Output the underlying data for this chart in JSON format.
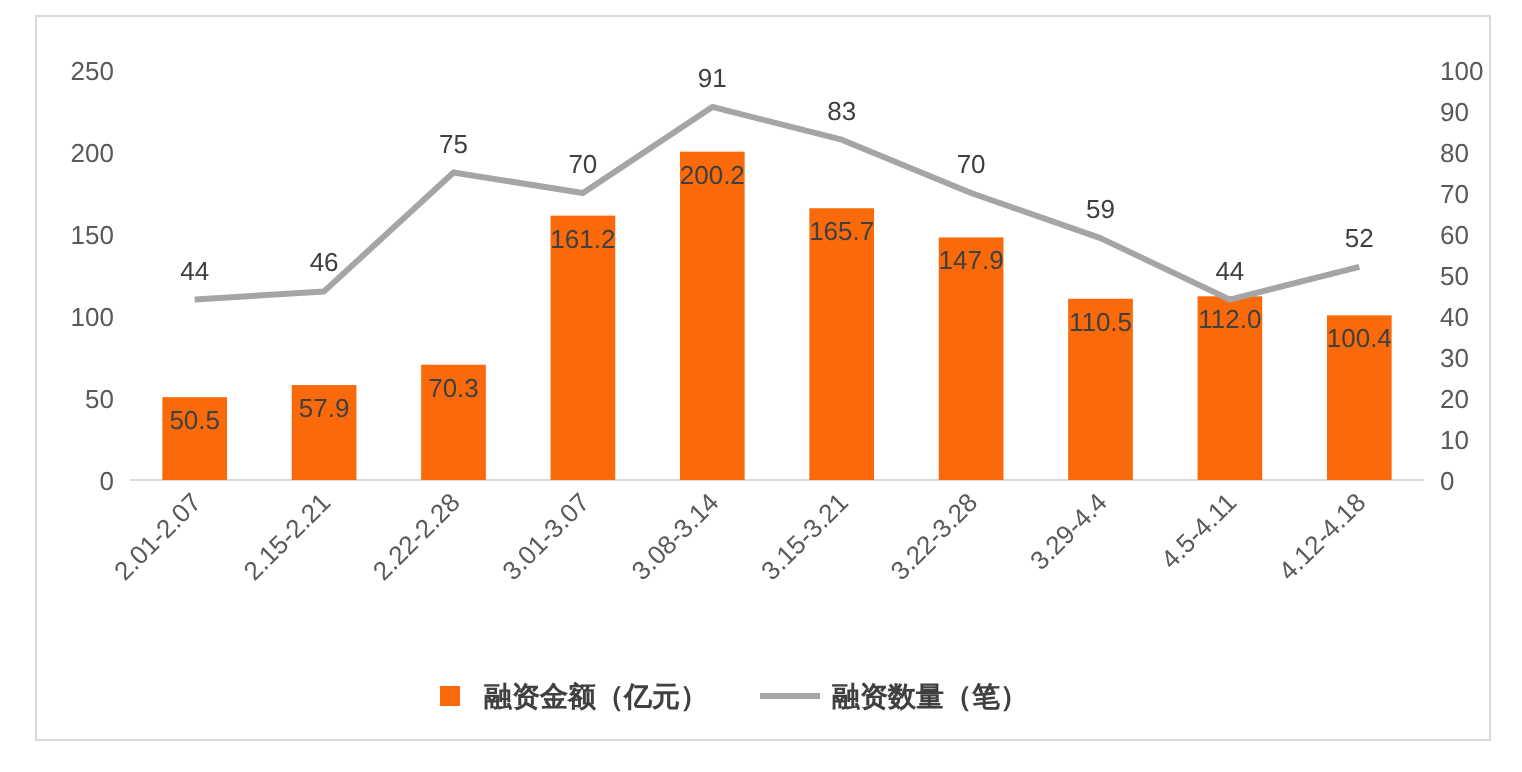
{
  "chart_data": {
    "type": "bar",
    "categories": [
      "2.01-2.07",
      "2.15-2.21",
      "2.22-2.28",
      "3.01-3.07",
      "3.08-3.14",
      "3.15-3.21",
      "3.22-3.28",
      "3.29-4.4",
      "4.5-4.11",
      "4.12-4.18"
    ],
    "series": [
      {
        "name": "融资金额（亿元）",
        "color": "#fa6a0a",
        "values": [
          50.5,
          57.9,
          70.3,
          161.2,
          200.2,
          165.7,
          147.9,
          110.5,
          112.0,
          100.4
        ],
        "value_labels": [
          "50.5",
          "57.9",
          "70.3",
          "161.2",
          "200.2",
          "165.7",
          "147.9",
          "110.5",
          "112.0",
          "100.4"
        ]
      },
      {
        "name": "融资数量（笔）",
        "type": "line",
        "axis": "y2",
        "color": "#a5a5a5",
        "values": [
          44,
          46,
          75,
          70,
          91,
          83,
          70,
          59,
          44,
          52
        ]
      }
    ],
    "ylim": [
      0,
      250
    ],
    "yticks": [
      0,
      50,
      100,
      150,
      200,
      250
    ],
    "y2lim": [
      0,
      100
    ],
    "y2ticks": [
      0,
      10,
      20,
      30,
      40,
      50,
      60,
      70,
      80,
      90,
      100
    ],
    "data_labels": true,
    "legend": "bottom",
    "grid": false,
    "marker": "none"
  }
}
